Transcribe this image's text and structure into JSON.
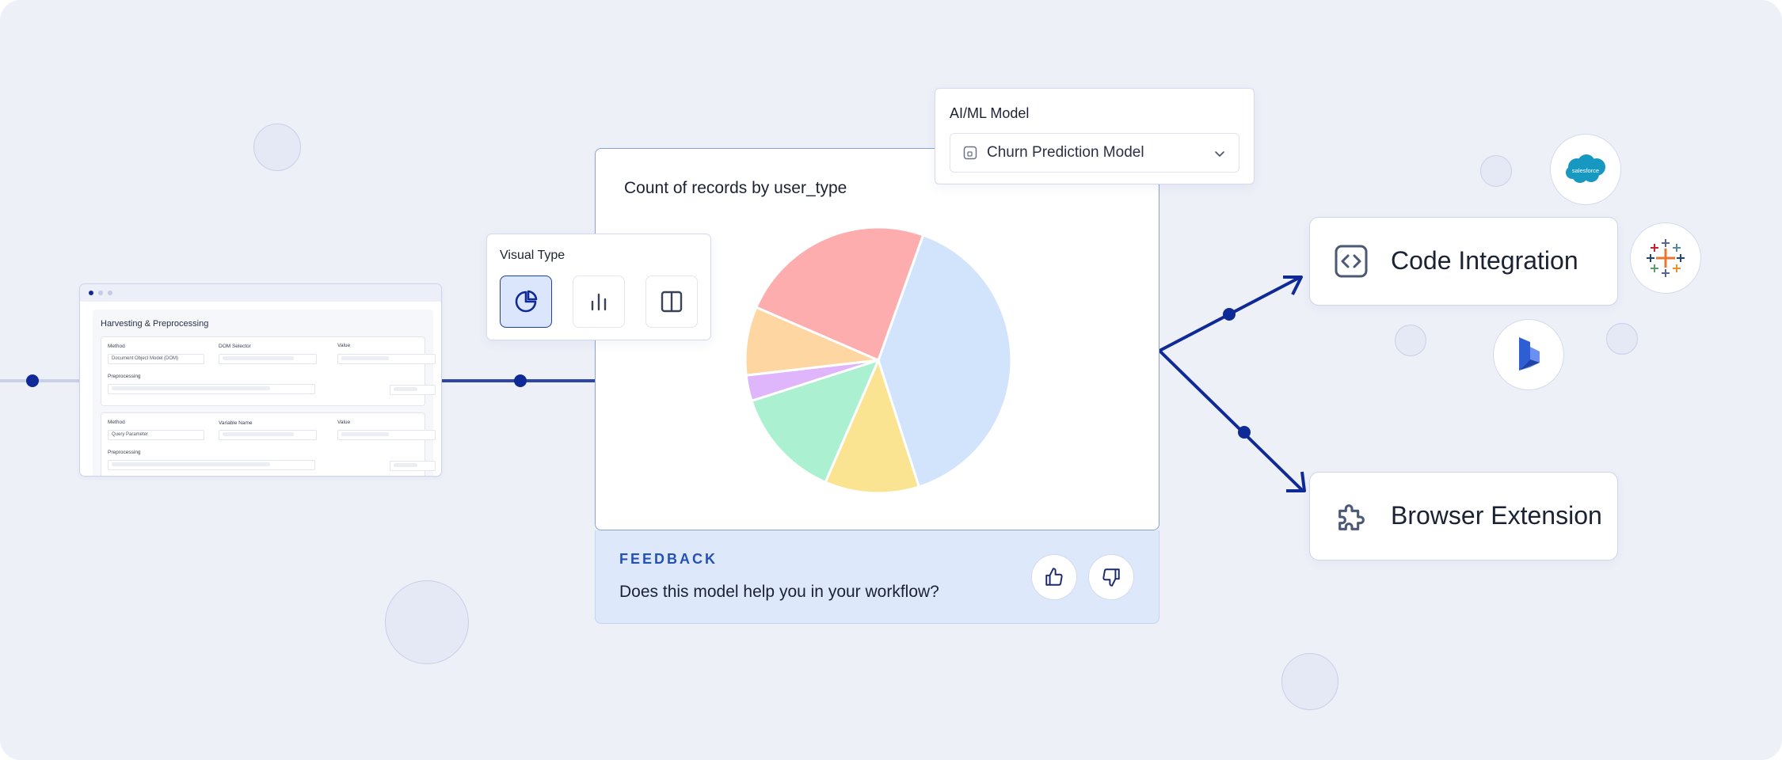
{
  "harvesting": {
    "title": "Harvesting & Preprocessing",
    "block1": {
      "method_label": "Method",
      "method_value": "Document Object Model (DOM)",
      "selector_label": "DOM Selector",
      "value_label": "Value",
      "preprocessing_label": "Preprocessing"
    },
    "block2": {
      "method_label": "Method",
      "method_value": "Query Parameter",
      "selector_label": "Variable Name",
      "value_label": "Value",
      "preprocessing_label": "Preprocessing"
    }
  },
  "visual_type": {
    "label": "Visual Type",
    "options": [
      "pie-chart-icon",
      "bar-chart-icon",
      "split-layout-icon"
    ],
    "selected": "pie-chart-icon"
  },
  "chart_title": "Count of records by user_type",
  "chart_data": {
    "type": "pie",
    "title": "Count of records by user_type",
    "values": [
      38,
      11,
      13,
      3,
      8,
      23
    ],
    "colors": [
      "#d2e4fc",
      "#fae391",
      "#aaf0d1",
      "#dfb5fb",
      "#fdd6a2",
      "#fdadad"
    ]
  },
  "feedback": {
    "label": "FEEDBACK",
    "question": "Does this model help you in your workflow?"
  },
  "ai_model": {
    "label": "AI/ML Model",
    "selected": "Churn Prediction Model"
  },
  "destinations": {
    "code": "Code Integration",
    "browser": "Browser Extension"
  },
  "logos": {
    "salesforce": "salesforce"
  },
  "colors": {
    "background": "#eef0f8",
    "accent": "#0f2a96",
    "feedback_bg": "#dde8fb"
  }
}
